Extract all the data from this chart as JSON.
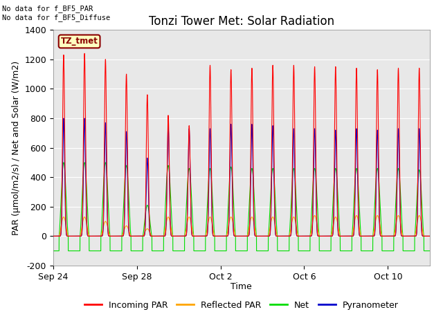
{
  "title": "Tonzi Tower Met: Solar Radiation",
  "xlabel": "Time",
  "ylabel": "PAR (μmol/m2/s) / Net and Solar (W/m2)",
  "ylim": [
    -200,
    1400
  ],
  "yticks": [
    -200,
    0,
    200,
    400,
    600,
    800,
    1000,
    1200,
    1400
  ],
  "xtick_labels": [
    "Sep 24",
    "Sep 28",
    "Oct 2",
    "Oct 6",
    "Oct 10"
  ],
  "xtick_positions": [
    0,
    4,
    8,
    12,
    16
  ],
  "annotation_top": "No data for f_BF5_PAR\nNo data for f_BF5_Diffuse",
  "legend_label_box": "TZ_tmet",
  "colors": {
    "incoming_par": "#ff0000",
    "reflected_par": "#ffa500",
    "net": "#00dd00",
    "pyranometer": "#0000cc"
  },
  "legend_labels": [
    "Incoming PAR",
    "Reflected PAR",
    "Net",
    "Pyranometer"
  ],
  "fig_facecolor": "#ffffff",
  "plot_bg_color": "#e8e8e8",
  "n_days": 18,
  "day_peaks_incoming": [
    1230,
    1240,
    1200,
    1100,
    960,
    820,
    750,
    1160,
    1130,
    1140,
    1160,
    1160,
    1150,
    1150,
    1140,
    1130,
    1140,
    1140
  ],
  "day_peaks_pyranometer": [
    800,
    800,
    770,
    710,
    530,
    750,
    730,
    730,
    760,
    760,
    750,
    730,
    730,
    720,
    730,
    720,
    730,
    730
  ],
  "day_peaks_reflected": [
    130,
    130,
    100,
    70,
    50,
    130,
    130,
    130,
    130,
    130,
    130,
    130,
    140,
    130,
    140,
    140,
    140,
    140
  ],
  "day_peaks_net": [
    500,
    500,
    500,
    480,
    210,
    480,
    460,
    460,
    470,
    460,
    460,
    460,
    460,
    460,
    460,
    460,
    460,
    450
  ],
  "net_night": -100,
  "title_fontsize": 12,
  "label_fontsize": 9,
  "tick_fontsize": 9
}
